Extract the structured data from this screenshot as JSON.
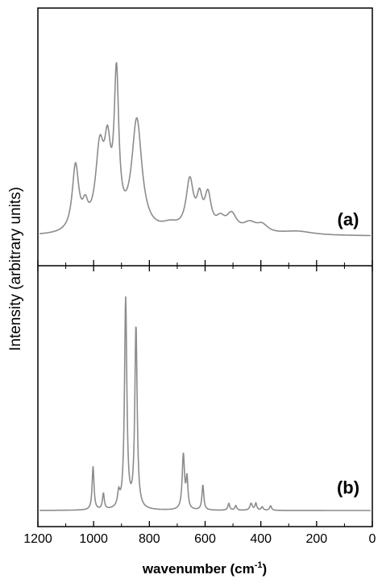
{
  "chart_data": {
    "type": "line",
    "layout": "two stacked panels sharing x-axis",
    "xlabel": "wavenumber (cm",
    "xlabel_sup": "-1",
    "xlabel_close": ")",
    "ylabel": "Intensity (arbitrary units)",
    "xlim": [
      1200,
      0
    ],
    "x_reversed": true,
    "x_ticks": [
      1200,
      1000,
      800,
      600,
      400,
      200,
      0
    ],
    "x_tick_labels": [
      "1200",
      "1000",
      "800",
      "600",
      "400",
      "200",
      "0"
    ],
    "line_color": "#8c8c8c",
    "panels": [
      {
        "label": "(a)",
        "ylim": [
          0,
          1
        ],
        "baseline": 0.02,
        "peaks": [
          {
            "x": 1065,
            "height": 0.34,
            "width": 14
          },
          {
            "x": 1030,
            "height": 0.1,
            "width": 12
          },
          {
            "x": 978,
            "height": 0.4,
            "width": 18
          },
          {
            "x": 950,
            "height": 0.36,
            "width": 14
          },
          {
            "x": 918,
            "height": 0.76,
            "width": 10
          },
          {
            "x": 845,
            "height": 0.58,
            "width": 22
          },
          {
            "x": 725,
            "height": 0.04,
            "width": 40
          },
          {
            "x": 655,
            "height": 0.26,
            "width": 16
          },
          {
            "x": 620,
            "height": 0.15,
            "width": 12
          },
          {
            "x": 590,
            "height": 0.18,
            "width": 14
          },
          {
            "x": 545,
            "height": 0.06,
            "width": 20
          },
          {
            "x": 505,
            "height": 0.09,
            "width": 22
          },
          {
            "x": 440,
            "height": 0.05,
            "width": 30
          },
          {
            "x": 395,
            "height": 0.04,
            "width": 25
          },
          {
            "x": 270,
            "height": 0.02,
            "width": 70
          }
        ]
      },
      {
        "label": "(b)",
        "ylim": [
          0,
          1
        ],
        "baseline": 0.0,
        "peaks": [
          {
            "x": 1002,
            "height": 0.19,
            "width": 4
          },
          {
            "x": 965,
            "height": 0.07,
            "width": 4
          },
          {
            "x": 910,
            "height": 0.06,
            "width": 5
          },
          {
            "x": 885,
            "height": 0.92,
            "width": 5
          },
          {
            "x": 848,
            "height": 0.8,
            "width": 5
          },
          {
            "x": 678,
            "height": 0.24,
            "width": 5
          },
          {
            "x": 665,
            "height": 0.13,
            "width": 4
          },
          {
            "x": 608,
            "height": 0.11,
            "width": 4
          },
          {
            "x": 515,
            "height": 0.03,
            "width": 4
          },
          {
            "x": 490,
            "height": 0.02,
            "width": 4
          },
          {
            "x": 435,
            "height": 0.03,
            "width": 5
          },
          {
            "x": 418,
            "height": 0.03,
            "width": 4
          },
          {
            "x": 395,
            "height": 0.015,
            "width": 4
          },
          {
            "x": 365,
            "height": 0.02,
            "width": 4
          }
        ]
      }
    ]
  }
}
